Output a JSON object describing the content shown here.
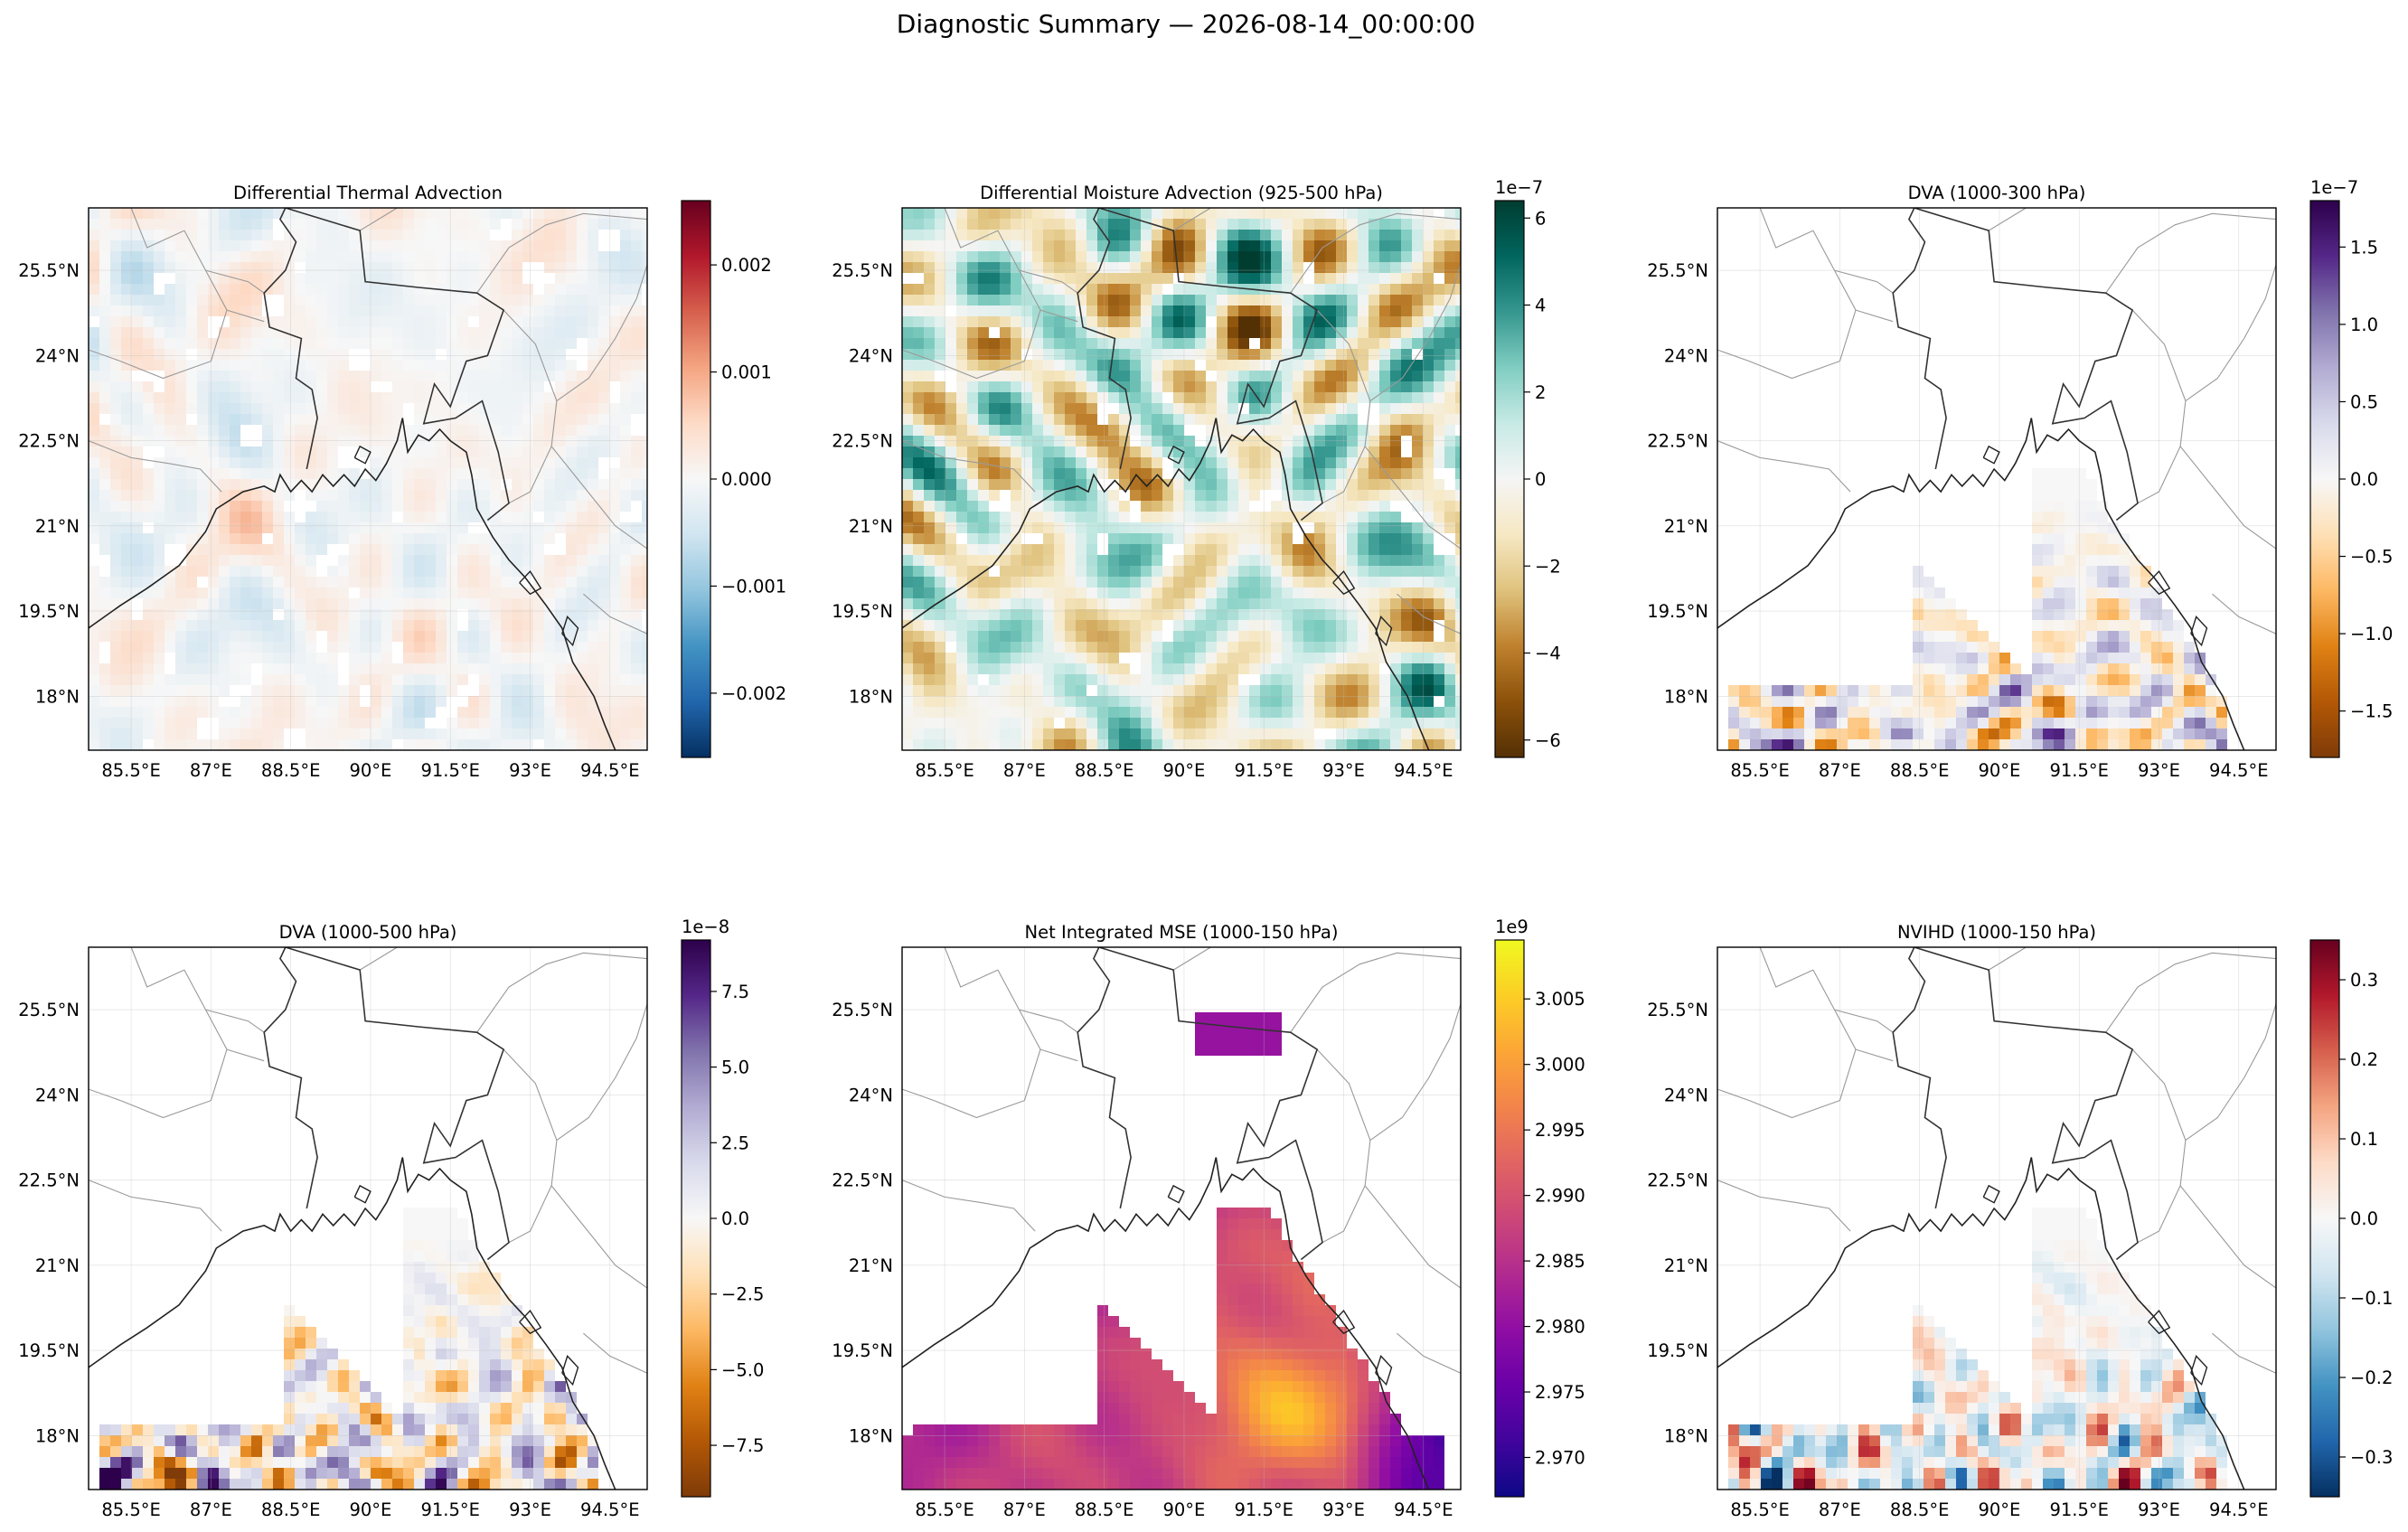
{
  "figure": {
    "title": "Diagnostic Summary — 2026-08-14_00:00:00"
  },
  "colormaps": {
    "RdBu_r": [
      "#053061",
      "#2166ac",
      "#4393c3",
      "#92c5de",
      "#d1e5f0",
      "#f7f7f7",
      "#fddbc7",
      "#f4a582",
      "#d6604d",
      "#b2182b",
      "#67001f"
    ],
    "BrBG": [
      "#543005",
      "#8c510a",
      "#bf812d",
      "#dfc27d",
      "#f6e8c3",
      "#f5f5f5",
      "#c7eae5",
      "#80cdc1",
      "#35978f",
      "#01665e",
      "#003c30"
    ],
    "PuOr": [
      "#7f3b08",
      "#b35806",
      "#e08214",
      "#fdb863",
      "#fee0b6",
      "#f7f7f7",
      "#d8daeb",
      "#b2abd2",
      "#8073ac",
      "#542788",
      "#2d004b"
    ],
    "plasma": [
      "#0d0887",
      "#41049d",
      "#6a00a8",
      "#8f0da4",
      "#b12a90",
      "#cc4778",
      "#e16462",
      "#f2844b",
      "#fca636",
      "#fcce25",
      "#f0f921"
    ]
  },
  "chart_data": [
    {
      "type": "heatmap",
      "title": "Differential Thermal Advection",
      "x_ticks": [
        "85.5°E",
        "87°E",
        "88.5°E",
        "90°E",
        "91.5°E",
        "93°E",
        "94.5°E"
      ],
      "y_ticks": [
        "25.5°N",
        "24°N",
        "22.5°N",
        "21°N",
        "19.5°N",
        "18°N"
      ],
      "colorbar": {
        "colormap": "RdBu_r",
        "range": [
          -0.0026,
          0.0026
        ],
        "ticks": [
          0.002,
          0.001,
          0.0,
          -0.001,
          -0.002
        ],
        "tick_labels": [
          "0.002",
          "0.001",
          "0.000",
          "−0.001",
          "−0.002"
        ],
        "offset_label": ""
      },
      "field": {
        "coverage": "full",
        "amplitude": 0.12
      }
    },
    {
      "type": "heatmap",
      "title": "Differential Moisture Advection (925-500 hPa)",
      "x_ticks": [
        "85.5°E",
        "87°E",
        "88.5°E",
        "90°E",
        "91.5°E",
        "93°E",
        "94.5°E"
      ],
      "y_ticks": [
        "25.5°N",
        "24°N",
        "22.5°N",
        "21°N",
        "19.5°N",
        "18°N"
      ],
      "colorbar": {
        "colormap": "BrBG",
        "range": [
          -6.4,
          6.4
        ],
        "ticks": [
          6,
          4,
          2,
          0,
          -2,
          -4,
          -6
        ],
        "tick_labels": [
          "6",
          "4",
          "2",
          "0",
          "−2",
          "−4",
          "−6"
        ],
        "offset_label": "1e−7"
      },
      "field": {
        "coverage": "full",
        "amplitude": 0.45
      }
    },
    {
      "type": "heatmap",
      "title": "DVA (1000-300 hPa)",
      "x_ticks": [
        "85.5°E",
        "87°E",
        "88.5°E",
        "90°E",
        "91.5°E",
        "93°E",
        "94.5°E"
      ],
      "y_ticks": [
        "25.5°N",
        "24°N",
        "22.5°N",
        "21°N",
        "19.5°N",
        "18°N"
      ],
      "colorbar": {
        "colormap": "PuOr",
        "range": [
          -1.8,
          1.8
        ],
        "ticks": [
          1.5,
          1.0,
          0.5,
          0.0,
          -0.5,
          -1.0,
          -1.5
        ],
        "tick_labels": [
          "1.5",
          "1.0",
          "0.5",
          "0.0",
          "−0.5",
          "−1.0",
          "−1.5"
        ],
        "offset_label": "1e−7"
      },
      "field": {
        "coverage": "bay",
        "amplitude": 0.5
      }
    },
    {
      "type": "heatmap",
      "title": "DVA (1000-500 hPa)",
      "x_ticks": [
        "85.5°E",
        "87°E",
        "88.5°E",
        "90°E",
        "91.5°E",
        "93°E",
        "94.5°E"
      ],
      "y_ticks": [
        "25.5°N",
        "24°N",
        "22.5°N",
        "21°N",
        "19.5°N",
        "18°N"
      ],
      "colorbar": {
        "colormap": "PuOr",
        "range": [
          -9.2,
          9.2
        ],
        "ticks": [
          7.5,
          5.0,
          2.5,
          0.0,
          -2.5,
          -5.0,
          -7.5
        ],
        "tick_labels": [
          "7.5",
          "5.0",
          "2.5",
          "0.0",
          "−2.5",
          "−5.0",
          "−7.5"
        ],
        "offset_label": "1e−8"
      },
      "field": {
        "coverage": "bay",
        "amplitude": 0.6
      }
    },
    {
      "type": "heatmap",
      "title": "Net Integrated MSE (1000-150 hPa)",
      "x_ticks": [
        "85.5°E",
        "87°E",
        "88.5°E",
        "90°E",
        "91.5°E",
        "93°E",
        "94.5°E"
      ],
      "y_ticks": [
        "25.5°N",
        "24°N",
        "22.5°N",
        "21°N",
        "19.5°N",
        "18°N"
      ],
      "colorbar": {
        "colormap": "plasma",
        "range": [
          2.967,
          3.0095
        ],
        "ticks": [
          3.005,
          3.0,
          2.995,
          2.99,
          2.985,
          2.98,
          2.975,
          2.97
        ],
        "tick_labels": [
          "3.005",
          "3.000",
          "2.995",
          "2.990",
          "2.985",
          "2.980",
          "2.975",
          "2.970"
        ],
        "offset_label": "1e9"
      },
      "field": {
        "coverage": "mse",
        "amplitude": 1.0
      }
    },
    {
      "type": "heatmap",
      "title": "NVIHD (1000-150 hPa)",
      "x_ticks": [
        "85.5°E",
        "87°E",
        "88.5°E",
        "90°E",
        "91.5°E",
        "93°E",
        "94.5°E"
      ],
      "y_ticks": [
        "25.5°N",
        "24°N",
        "22.5°N",
        "21°N",
        "19.5°N",
        "18°N"
      ],
      "colorbar": {
        "colormap": "RdBu_r",
        "range": [
          -0.35,
          0.35
        ],
        "ticks": [
          0.3,
          0.2,
          0.1,
          0.0,
          -0.1,
          -0.2,
          -0.3
        ],
        "tick_labels": [
          "0.3",
          "0.2",
          "0.1",
          "0.0",
          "−0.1",
          "−0.2",
          "−0.3"
        ],
        "offset_label": ""
      },
      "field": {
        "coverage": "bay",
        "amplitude": 0.55
      }
    }
  ]
}
